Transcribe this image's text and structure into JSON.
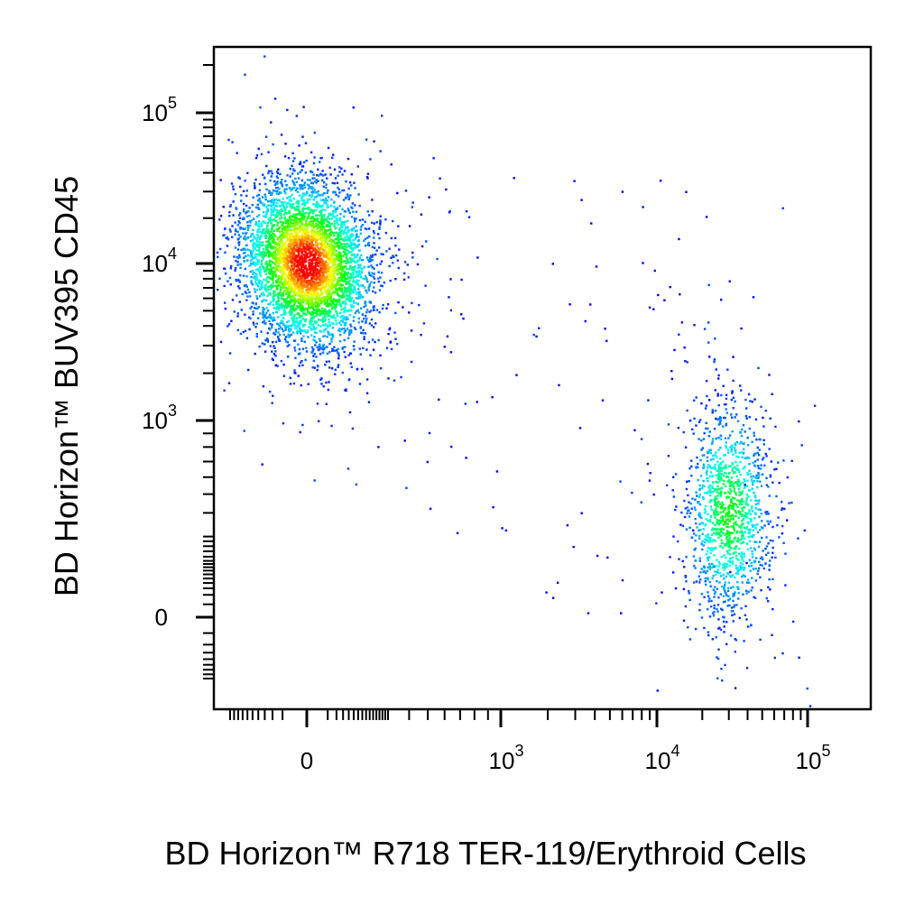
{
  "chart_data": {
    "type": "scatter",
    "subtype": "flow-cytometry-density-dot-plot",
    "xlabel": "BD Horizon™ R718 TER-119/Erythroid Cells",
    "ylabel": "BD Horizon™ BUV395 CD45",
    "x_scale": "biexponential",
    "y_scale": "biexponential",
    "xlim": [
      -200,
      150000
    ],
    "ylim": [
      -150,
      250000
    ],
    "x_ticks": [
      {
        "value": 0,
        "base": "0",
        "exp": ""
      },
      {
        "value": 1000,
        "base": "10",
        "exp": "3"
      },
      {
        "value": 10000,
        "base": "10",
        "exp": "4"
      },
      {
        "value": 100000,
        "base": "10",
        "exp": "5"
      }
    ],
    "y_ticks": [
      {
        "value": 0,
        "base": "0",
        "exp": ""
      },
      {
        "value": 1000,
        "base": "10",
        "exp": "3"
      },
      {
        "value": 10000,
        "base": "10",
        "exp": "4"
      },
      {
        "value": 100000,
        "base": "10",
        "exp": "5"
      }
    ],
    "grid": false,
    "legend": "none",
    "color_scale": [
      "#0000ff",
      "#00ffff",
      "#00ff00",
      "#ffff00",
      "#ff0000"
    ],
    "populations": [
      {
        "description": "CD45+ TER-119- (upper left)",
        "center_x": 0,
        "center_y": 10000,
        "x_range": [
          -100,
          300
        ],
        "y_range": [
          3000,
          40000
        ],
        "approx_events": 4500,
        "peak_density": "high"
      },
      {
        "description": "TER-119+ CD45- erythroid (lower right)",
        "center_x": 30000,
        "center_y": 400,
        "x_range": [
          15000,
          60000
        ],
        "y_range": [
          0,
          1500
        ],
        "approx_events": 1300,
        "peak_density": "medium"
      }
    ]
  }
}
